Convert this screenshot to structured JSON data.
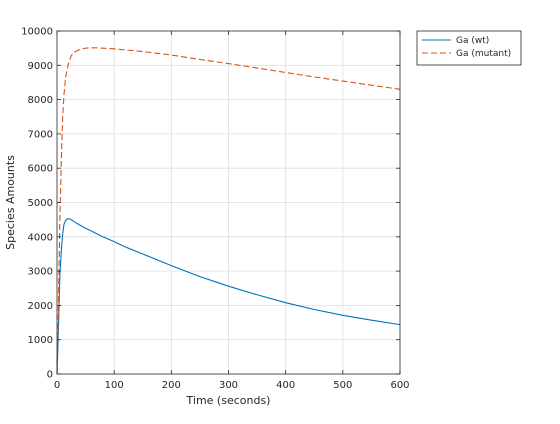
{
  "chart_data": {
    "type": "line",
    "title": "",
    "xlabel": "Time (seconds)",
    "ylabel": "Species Amounts",
    "xlim": [
      0,
      600
    ],
    "ylim": [
      0,
      10000
    ],
    "x_ticks": [
      0,
      100,
      200,
      300,
      400,
      500,
      600
    ],
    "y_ticks": [
      0,
      1000,
      2000,
      3000,
      4000,
      5000,
      6000,
      7000,
      8000,
      9000,
      10000
    ],
    "grid": true,
    "legend_position": "outside-top-right",
    "series": [
      {
        "name": "Ga (wt)",
        "color": "#0072BD",
        "line_style": "solid",
        "x": [
          0,
          2,
          5,
          8,
          10,
          12,
          15,
          18,
          20,
          25,
          30,
          40,
          50,
          60,
          80,
          100,
          120,
          150,
          200,
          250,
          300,
          350,
          400,
          450,
          500,
          550,
          600
        ],
        "y": [
          0,
          1000,
          2900,
          3700,
          4100,
          4350,
          4480,
          4520,
          4530,
          4500,
          4440,
          4340,
          4250,
          4170,
          4000,
          3860,
          3700,
          3500,
          3160,
          2840,
          2560,
          2310,
          2080,
          1880,
          1710,
          1570,
          1440
        ]
      },
      {
        "name": "Ga (mutant)",
        "color": "#D95319",
        "line_style": "dashed",
        "x": [
          0,
          2,
          5,
          8,
          10,
          12,
          15,
          20,
          25,
          30,
          40,
          50,
          60,
          70,
          80,
          100,
          150,
          200,
          250,
          300,
          350,
          400,
          450,
          500,
          550,
          600
        ],
        "y": [
          0,
          1500,
          4500,
          6500,
          7500,
          8100,
          8650,
          9050,
          9280,
          9380,
          9460,
          9500,
          9510,
          9510,
          9500,
          9480,
          9400,
          9300,
          9170,
          9050,
          8920,
          8790,
          8660,
          8540,
          8420,
          8300
        ]
      }
    ]
  }
}
